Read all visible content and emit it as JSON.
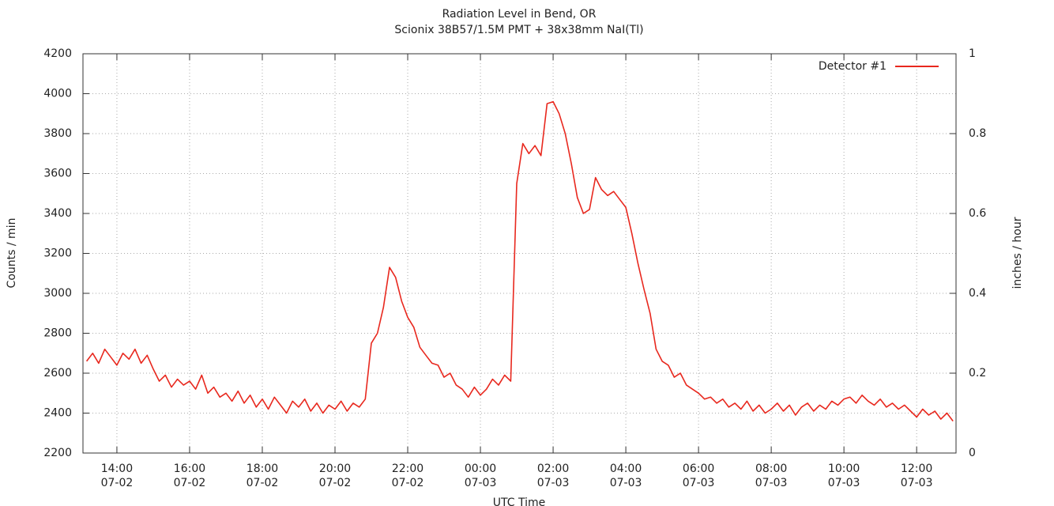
{
  "chart_data": {
    "type": "line",
    "title": "Radiation Level in Bend, OR",
    "subtitle": "Scionix 38B57/1.5M PMT + 38x38mm NaI(Tl)",
    "xlabel": "UTC Time",
    "ylabel": "Counts / min",
    "y2label": "inches / hour",
    "xlim": [
      "07-02 13:04",
      "07-03 13:05"
    ],
    "xticks": [
      {
        "value": "07-02 14:00",
        "label": [
          "14:00",
          "07-02"
        ]
      },
      {
        "value": "07-02 16:00",
        "label": [
          "16:00",
          "07-02"
        ]
      },
      {
        "value": "07-02 18:00",
        "label": [
          "18:00",
          "07-02"
        ]
      },
      {
        "value": "07-02 20:00",
        "label": [
          "20:00",
          "07-02"
        ]
      },
      {
        "value": "07-02 22:00",
        "label": [
          "22:00",
          "07-02"
        ]
      },
      {
        "value": "07-03 00:00",
        "label": [
          "00:00",
          "07-03"
        ]
      },
      {
        "value": "07-03 02:00",
        "label": [
          "02:00",
          "07-03"
        ]
      },
      {
        "value": "07-03 04:00",
        "label": [
          "04:00",
          "07-03"
        ]
      },
      {
        "value": "07-03 06:00",
        "label": [
          "06:00",
          "07-03"
        ]
      },
      {
        "value": "07-03 08:00",
        "label": [
          "08:00",
          "07-03"
        ]
      },
      {
        "value": "07-03 10:00",
        "label": [
          "10:00",
          "07-03"
        ]
      },
      {
        "value": "07-03 12:00",
        "label": [
          "12:00",
          "07-03"
        ]
      }
    ],
    "ylim": [
      2200,
      4200
    ],
    "yticks": [
      2200,
      2400,
      2600,
      2800,
      3000,
      3200,
      3400,
      3600,
      3800,
      4000,
      4200
    ],
    "y2lim": [
      0,
      1
    ],
    "y2ticks": [
      0,
      0.2,
      0.4,
      0.6,
      0.8,
      1
    ],
    "grid": true,
    "legend": "top-right",
    "x": [
      "07-02 13:10",
      "07-02 13:20",
      "07-02 13:30",
      "07-02 13:40",
      "07-02 13:50",
      "07-02 14:00",
      "07-02 14:10",
      "07-02 14:20",
      "07-02 14:30",
      "07-02 14:40",
      "07-02 14:50",
      "07-02 15:00",
      "07-02 15:10",
      "07-02 15:20",
      "07-02 15:30",
      "07-02 15:40",
      "07-02 15:50",
      "07-02 16:00",
      "07-02 16:10",
      "07-02 16:20",
      "07-02 16:30",
      "07-02 16:40",
      "07-02 16:50",
      "07-02 17:00",
      "07-02 17:10",
      "07-02 17:20",
      "07-02 17:30",
      "07-02 17:40",
      "07-02 17:50",
      "07-02 18:00",
      "07-02 18:10",
      "07-02 18:20",
      "07-02 18:30",
      "07-02 18:40",
      "07-02 18:50",
      "07-02 19:00",
      "07-02 19:10",
      "07-02 19:20",
      "07-02 19:30",
      "07-02 19:40",
      "07-02 19:50",
      "07-02 20:00",
      "07-02 20:10",
      "07-02 20:20",
      "07-02 20:30",
      "07-02 20:40",
      "07-02 20:50",
      "07-02 21:00",
      "07-02 21:10",
      "07-02 21:20",
      "07-02 21:30",
      "07-02 21:40",
      "07-02 21:50",
      "07-02 22:00",
      "07-02 22:10",
      "07-02 22:20",
      "07-02 22:30",
      "07-02 22:40",
      "07-02 22:50",
      "07-02 23:00",
      "07-02 23:10",
      "07-02 23:20",
      "07-02 23:30",
      "07-02 23:40",
      "07-02 23:50",
      "07-03 00:00",
      "07-03 00:10",
      "07-03 00:20",
      "07-03 00:30",
      "07-03 00:40",
      "07-03 00:50",
      "07-03 01:00",
      "07-03 01:10",
      "07-03 01:20",
      "07-03 01:30",
      "07-03 01:40",
      "07-03 01:50",
      "07-03 02:00",
      "07-03 02:10",
      "07-03 02:20",
      "07-03 02:30",
      "07-03 02:40",
      "07-03 02:50",
      "07-03 03:00",
      "07-03 03:10",
      "07-03 03:20",
      "07-03 03:30",
      "07-03 03:40",
      "07-03 03:50",
      "07-03 04:00",
      "07-03 04:10",
      "07-03 04:20",
      "07-03 04:30",
      "07-03 04:40",
      "07-03 04:50",
      "07-03 05:00",
      "07-03 05:10",
      "07-03 05:20",
      "07-03 05:30",
      "07-03 05:40",
      "07-03 05:50",
      "07-03 06:00",
      "07-03 06:10",
      "07-03 06:20",
      "07-03 06:30",
      "07-03 06:40",
      "07-03 06:50",
      "07-03 07:00",
      "07-03 07:10",
      "07-03 07:20",
      "07-03 07:30",
      "07-03 07:40",
      "07-03 07:50",
      "07-03 08:00",
      "07-03 08:10",
      "07-03 08:20",
      "07-03 08:30",
      "07-03 08:40",
      "07-03 08:50",
      "07-03 09:00",
      "07-03 09:10",
      "07-03 09:20",
      "07-03 09:30",
      "07-03 09:40",
      "07-03 09:50",
      "07-03 10:00",
      "07-03 10:10",
      "07-03 10:20",
      "07-03 10:30",
      "07-03 10:40",
      "07-03 10:50",
      "07-03 11:00",
      "07-03 11:10",
      "07-03 11:20",
      "07-03 11:30",
      "07-03 11:40",
      "07-03 11:50",
      "07-03 12:00",
      "07-03 12:10",
      "07-03 12:20",
      "07-03 12:30",
      "07-03 12:40",
      "07-03 12:50",
      "07-03 13:00"
    ],
    "series": [
      {
        "name": "Detector #1",
        "color": "#e8281e",
        "values": [
          2660,
          2700,
          2650,
          2720,
          2680,
          2640,
          2700,
          2670,
          2720,
          2650,
          2690,
          2620,
          2560,
          2590,
          2530,
          2570,
          2540,
          2560,
          2520,
          2590,
          2500,
          2530,
          2480,
          2500,
          2460,
          2510,
          2450,
          2490,
          2430,
          2470,
          2420,
          2480,
          2440,
          2400,
          2460,
          2430,
          2470,
          2410,
          2450,
          2400,
          2440,
          2420,
          2460,
          2410,
          2450,
          2430,
          2470,
          2750,
          2800,
          2930,
          3130,
          3080,
          2960,
          2880,
          2830,
          2730,
          2690,
          2650,
          2640,
          2580,
          2600,
          2540,
          2520,
          2480,
          2530,
          2490,
          2520,
          2570,
          2540,
          2590,
          2560,
          3550,
          3750,
          3700,
          3740,
          3690,
          3950,
          3960,
          3900,
          3800,
          3650,
          3480,
          3400,
          3420,
          3580,
          3520,
          3490,
          3510,
          3470,
          3430,
          3300,
          3150,
          3020,
          2900,
          2720,
          2660,
          2640,
          2580,
          2600,
          2540,
          2520,
          2500,
          2470,
          2480,
          2450,
          2470,
          2430,
          2450,
          2420,
          2460,
          2410,
          2440,
          2400,
          2420,
          2450,
          2410,
          2440,
          2390,
          2430,
          2450,
          2410,
          2440,
          2420,
          2460,
          2440,
          2470,
          2480,
          2450,
          2490,
          2460,
          2440,
          2470,
          2430,
          2450,
          2420,
          2440,
          2410,
          2380,
          2420,
          2390,
          2410,
          2370,
          2400,
          2360
        ]
      }
    ]
  }
}
